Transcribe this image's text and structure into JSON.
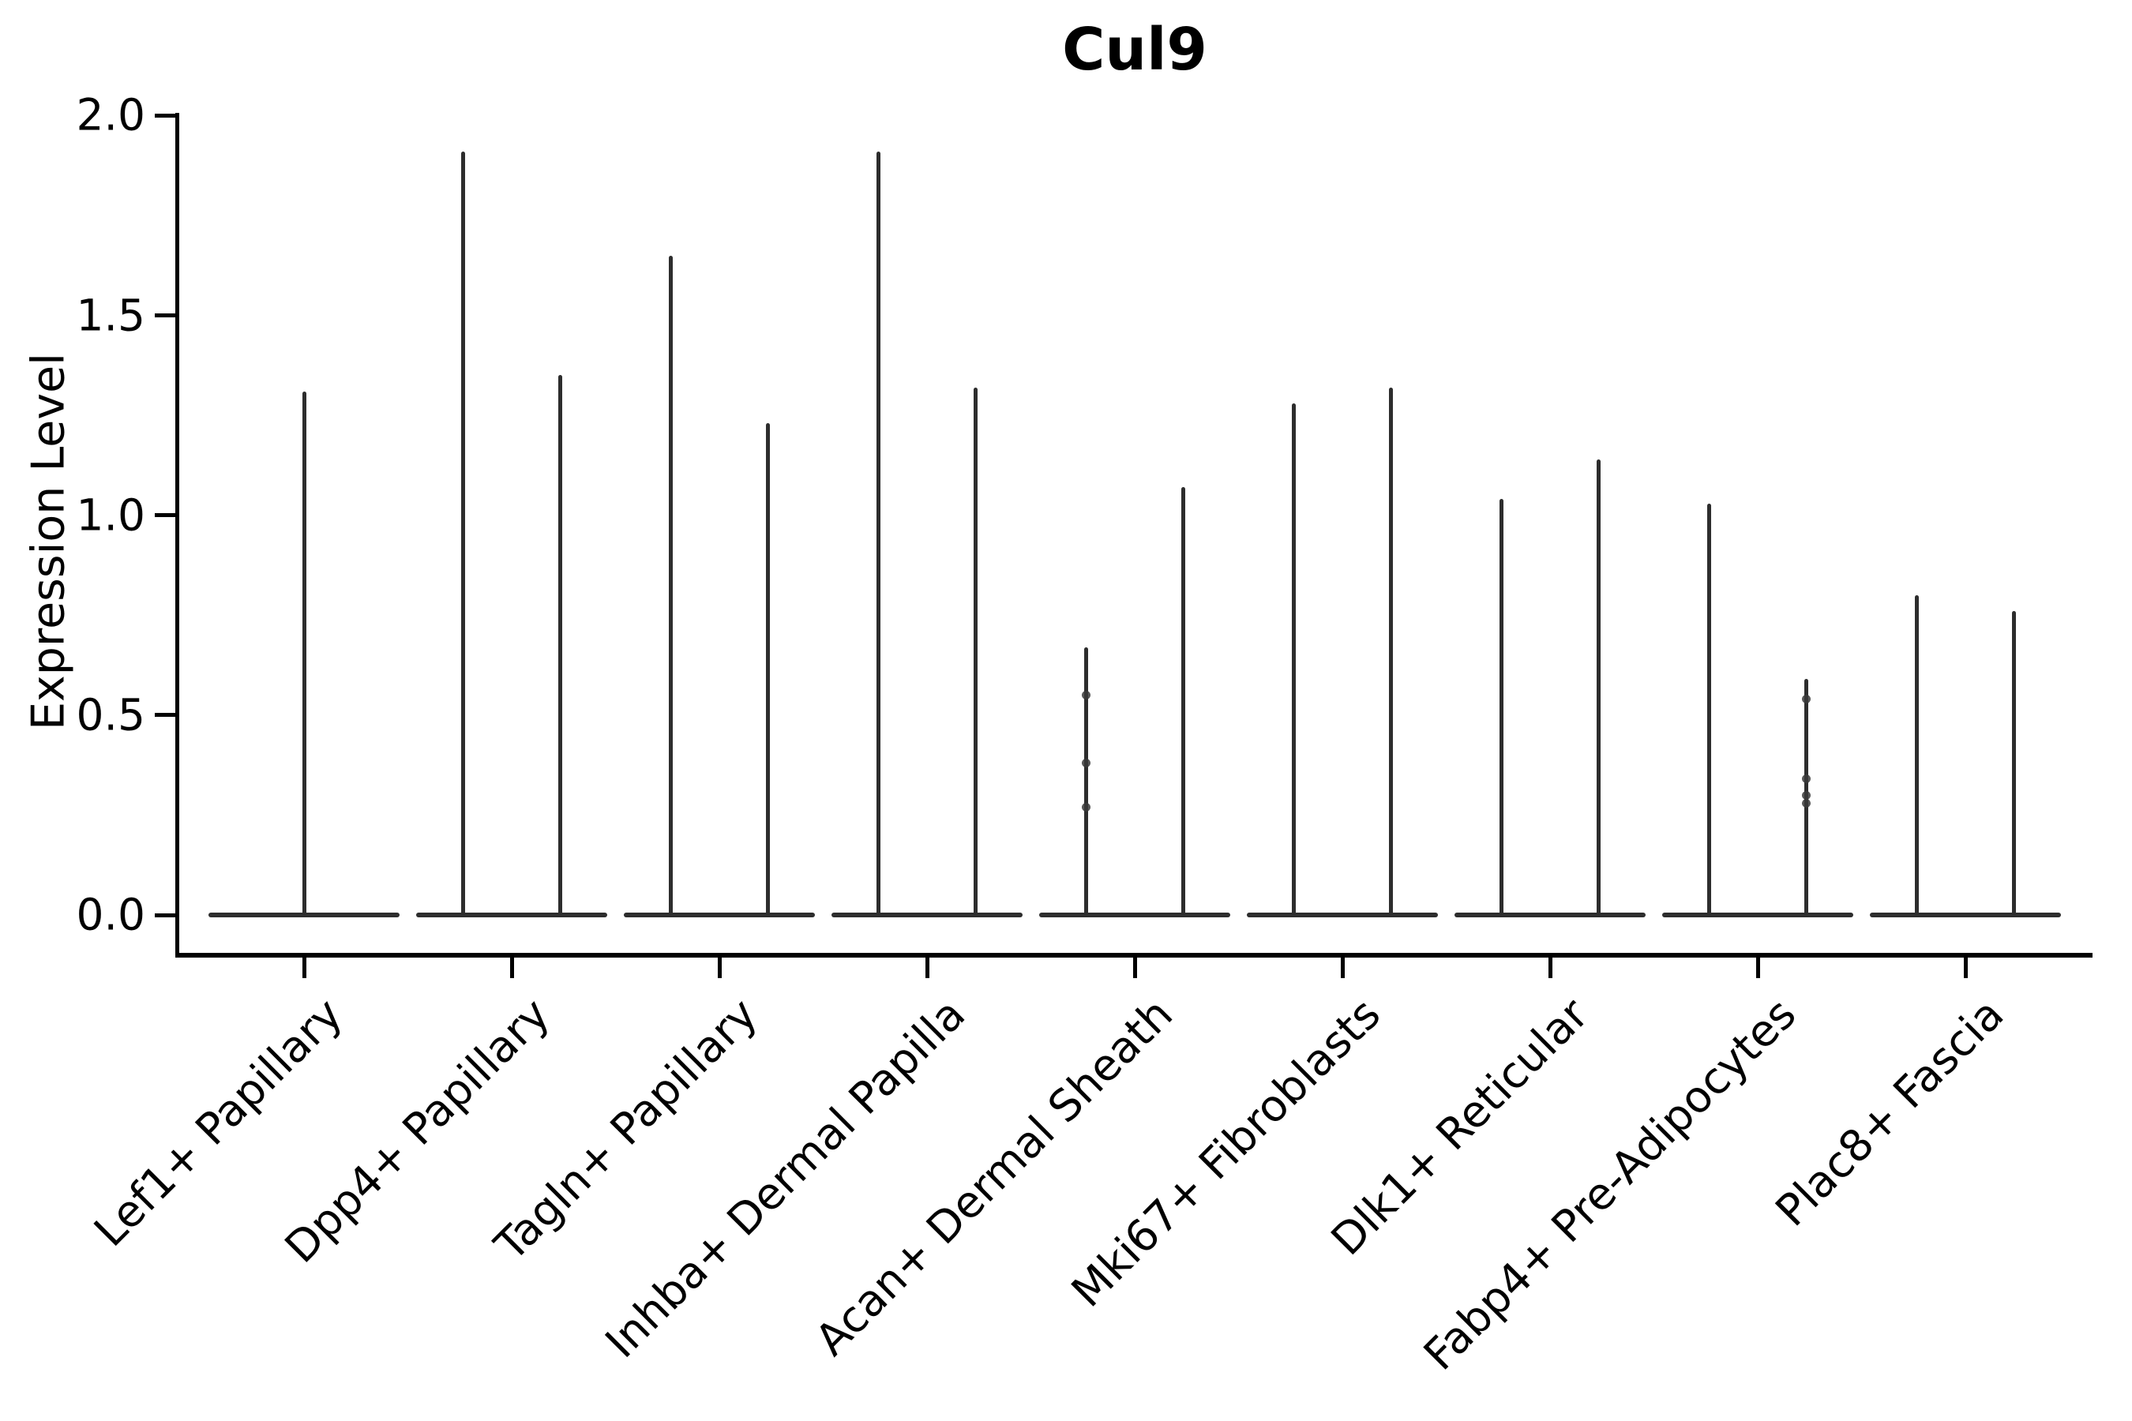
{
  "title": "Cul9",
  "y_axis": {
    "label": "Expression Level",
    "tick_labels": [
      "0.0",
      "0.5",
      "1.0",
      "1.5",
      "2.0"
    ]
  },
  "x_axis": {
    "categories": [
      "Lef1+ Papillary",
      "Dpp4+ Papillary",
      "Tagln+ Papillary",
      "Inhba+ Dermal Papilla",
      "Acan+ Dermal Sheath",
      "Mki67+ Fibroblasts",
      "Dlk1+ Reticular",
      "Fabp4+ Pre-Adipocytes",
      "Plac8+ Fascia"
    ]
  },
  "chart_data": {
    "type": "violin",
    "title": "Cul9",
    "xlabel": "",
    "ylabel": "Expression Level",
    "ylim": [
      0.0,
      2.0
    ],
    "y_ticks": [
      0.0,
      0.5,
      1.0,
      1.5,
      2.0
    ],
    "grid": false,
    "legend": "none",
    "description": "Collapsed violins: wide flat density base at 0 with thin spikes up to each group's maximum expression; first category has a single full-width violin, all others contain two side-by-side violins",
    "categories": [
      "Lef1+ Papillary",
      "Dpp4+ Papillary",
      "Tagln+ Papillary",
      "Inhba+ Dermal Papilla",
      "Acan+ Dermal Sheath",
      "Mki67+ Fibroblasts",
      "Dlk1+ Reticular",
      "Fabp4+ Pre-Adipocytes",
      "Plac8+ Fascia"
    ],
    "violins": [
      {
        "category": "Lef1+ Papillary",
        "spikes": [
          {
            "pos": "center",
            "max": 1.31,
            "points": []
          }
        ]
      },
      {
        "category": "Dpp4+ Papillary",
        "spikes": [
          {
            "pos": "left",
            "max": 1.91,
            "points": []
          },
          {
            "pos": "right",
            "max": 1.35,
            "points": []
          }
        ]
      },
      {
        "category": "Tagln+ Papillary",
        "spikes": [
          {
            "pos": "left",
            "max": 1.65,
            "points": []
          },
          {
            "pos": "right",
            "max": 1.23,
            "points": []
          }
        ]
      },
      {
        "category": "Inhba+ Dermal Papilla",
        "spikes": [
          {
            "pos": "left",
            "max": 1.91,
            "points": []
          },
          {
            "pos": "right",
            "max": 1.32,
            "points": []
          }
        ]
      },
      {
        "category": "Acan+ Dermal Sheath",
        "spikes": [
          {
            "pos": "left",
            "max": 0.67,
            "points": [
              0.55,
              0.38,
              0.27
            ]
          },
          {
            "pos": "right",
            "max": 1.07,
            "points": []
          }
        ]
      },
      {
        "category": "Mki67+ Fibroblasts",
        "spikes": [
          {
            "pos": "left",
            "max": 1.28,
            "points": []
          },
          {
            "pos": "right",
            "max": 1.32,
            "points": []
          }
        ]
      },
      {
        "category": "Dlk1+ Reticular",
        "spikes": [
          {
            "pos": "left",
            "max": 1.04,
            "points": []
          },
          {
            "pos": "right",
            "max": 1.14,
            "points": []
          }
        ]
      },
      {
        "category": "Fabp4+ Pre-Adipocytes",
        "spikes": [
          {
            "pos": "left",
            "max": 1.03,
            "points": []
          },
          {
            "pos": "right",
            "max": 0.59,
            "points": [
              0.54,
              0.34,
              0.3,
              0.28
            ]
          }
        ]
      },
      {
        "category": "Plac8+ Fascia",
        "spikes": [
          {
            "pos": "left",
            "max": 0.8,
            "points": []
          },
          {
            "pos": "right",
            "max": 0.76,
            "points": []
          }
        ]
      }
    ],
    "style": {
      "violin_color": "#2d2d2d",
      "axis_color": "#000000",
      "background": "#ffffff"
    }
  }
}
